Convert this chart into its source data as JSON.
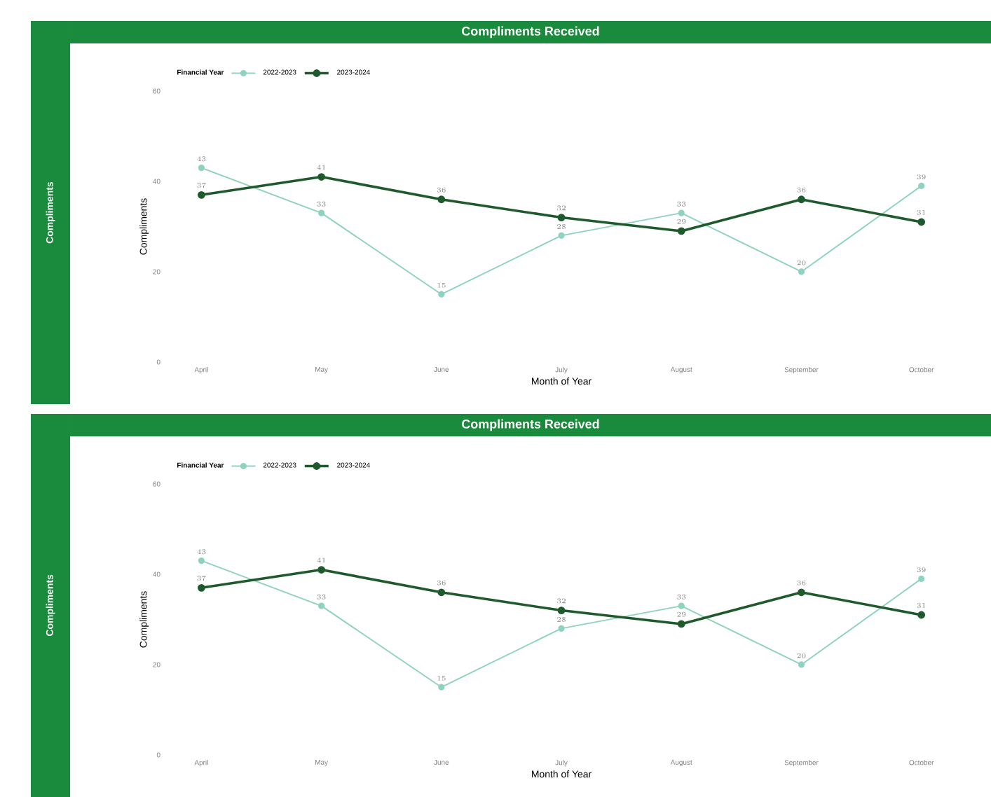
{
  "chart_data": [
    {
      "type": "line",
      "title": "Compliments Received",
      "xlabel": "Month of Year",
      "ylabel": "Compliments",
      "legend_title": "Financial Year",
      "annotations": [
        "Compliments"
      ],
      "categories": [
        "April",
        "May",
        "June",
        "July",
        "August",
        "September",
        "October"
      ],
      "series": [
        {
          "name": "2022-2023",
          "color": "#8fd3bd",
          "values": [
            43,
            33,
            15,
            28,
            33,
            20,
            39
          ]
        },
        {
          "name": "2023-2024",
          "color": "#1f5a2c",
          "values": [
            37,
            41,
            36,
            32,
            29,
            36,
            31
          ]
        }
      ],
      "ylim": [
        0,
        60
      ],
      "yticks": [
        0,
        20,
        40,
        60
      ],
      "data_labels": true,
      "legend": "top left",
      "marker": "circle",
      "line_style": "solid",
      "grid": false
    },
    {
      "type": "line",
      "title": "Compliments Received",
      "xlabel": "Month of Year",
      "ylabel": "Compliments",
      "legend_title": "Financial Year",
      "annotations": [
        "Compliments"
      ],
      "categories": [
        "April",
        "May",
        "June",
        "July",
        "August",
        "September",
        "October"
      ],
      "series": [
        {
          "name": "2022-2023",
          "color": "#8fd3bd",
          "values": [
            43,
            33,
            15,
            28,
            33,
            20,
            39
          ]
        },
        {
          "name": "2023-2024",
          "color": "#1f5a2c",
          "values": [
            37,
            41,
            36,
            32,
            29,
            36,
            31
          ]
        }
      ],
      "ylim": [
        0,
        60
      ],
      "yticks": [
        0,
        20,
        40,
        60
      ],
      "data_labels": true,
      "legend": "top left",
      "marker": "circle",
      "line_style": "solid",
      "grid": false
    }
  ]
}
